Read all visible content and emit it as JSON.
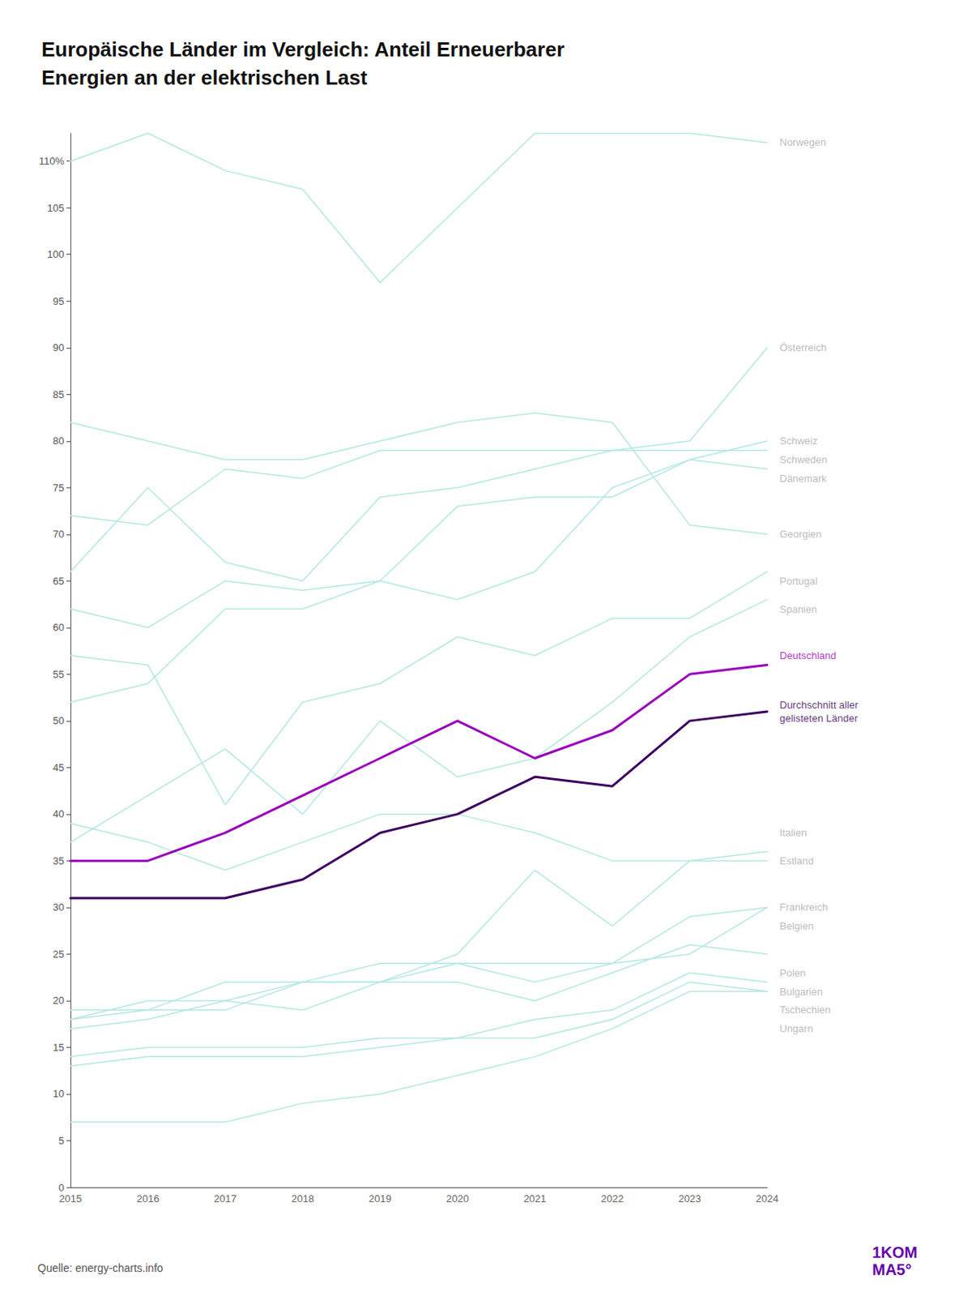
{
  "chart_data": {
    "type": "line",
    "title": "Europäische Länder im Vergleich: Anteil Erneuerbarer\nEnergien an der elektrischen Last",
    "categories": [
      "2015",
      "2016",
      "2017",
      "2018",
      "2019",
      "2020",
      "2021",
      "2022",
      "2023",
      "2024"
    ],
    "series": [
      {
        "name": "Norwegen",
        "color": "#b2e8e0",
        "values": [
          110,
          113,
          109,
          107,
          97,
          105,
          113,
          113,
          113,
          112
        ]
      },
      {
        "name": "Georgien",
        "color": "#b2e8e0",
        "values": [
          82,
          80,
          78,
          78,
          80,
          82,
          83,
          82,
          71,
          70
        ]
      },
      {
        "name": "Österreich",
        "color": "#b2e8e0",
        "values": [
          72,
          71,
          77,
          76,
          79,
          79,
          79,
          79,
          80,
          90
        ]
      },
      {
        "name": "Schweden",
        "color": "#b2e8e0",
        "values": [
          66,
          75,
          67,
          65,
          74,
          75,
          77,
          79,
          79,
          79
        ]
      },
      {
        "name": "Schweiz",
        "color": "#b2e8e0",
        "values": [
          62,
          60,
          65,
          64,
          65,
          63,
          66,
          75,
          78,
          80
        ]
      },
      {
        "name": "Dänemark",
        "color": "#b2e8e0",
        "values": [
          52,
          54,
          62,
          62,
          65,
          73,
          74,
          74,
          78,
          77
        ]
      },
      {
        "name": "Portugal",
        "color": "#b2e8e0",
        "values": [
          57,
          56,
          41,
          52,
          54,
          59,
          57,
          61,
          61,
          66
        ]
      },
      {
        "name": "Spanien",
        "color": "#b2e8e0",
        "values": [
          37,
          42,
          47,
          40,
          50,
          44,
          46,
          52,
          59,
          63
        ]
      },
      {
        "name": "Italien",
        "color": "#b2e8e0",
        "values": [
          39,
          37,
          34,
          37,
          40,
          40,
          38,
          35,
          35,
          36
        ]
      },
      {
        "name": "Estland",
        "color": "#b2e8e0",
        "values": [
          18,
          19,
          19,
          22,
          22,
          25,
          34,
          28,
          35,
          35
        ]
      },
      {
        "name": "Frankreich",
        "color": "#b2e8e0",
        "values": [
          19,
          19,
          22,
          22,
          22,
          24,
          22,
          24,
          25,
          30
        ]
      },
      {
        "name": "Belgien",
        "color": "#b2e8e0",
        "values": [
          18,
          20,
          20,
          22,
          24,
          24,
          24,
          24,
          29,
          30
        ]
      },
      {
        "name": "Polen",
        "color": "#b2e8e0",
        "values": [
          13,
          14,
          14,
          14,
          15,
          16,
          18,
          19,
          23,
          22
        ]
      },
      {
        "name": "Bulgarien",
        "color": "#b2e8e0",
        "values": [
          17,
          18,
          20,
          19,
          22,
          22,
          20,
          23,
          26,
          25
        ]
      },
      {
        "name": "Tschechien",
        "color": "#b2e8e0",
        "values": [
          14,
          15,
          15,
          15,
          16,
          16,
          16,
          18,
          22,
          21
        ]
      },
      {
        "name": "Ungarn",
        "color": "#b2e8e0",
        "values": [
          7,
          7,
          7,
          9,
          10,
          12,
          14,
          17,
          21,
          21
        ]
      },
      {
        "name": "Deutschland",
        "color": "#9900bb",
        "values": [
          35,
          35,
          38,
          42,
          46,
          50,
          46,
          49,
          55,
          56
        ]
      },
      {
        "name": "Durchschnitt aller\ngelisteten Länder",
        "color": "#3d0060",
        "values": [
          31,
          31,
          31,
          33,
          38,
          40,
          44,
          43,
          50,
          51
        ]
      }
    ],
    "ylim": [
      0,
      113
    ],
    "yticks": [
      0,
      5,
      10,
      15,
      20,
      25,
      30,
      35,
      40,
      45,
      50,
      55,
      60,
      65,
      70,
      75,
      80,
      85,
      90,
      95,
      100,
      105,
      {
        "value": 110,
        "label": "110%"
      }
    ],
    "grid": false,
    "annotations": [
      {
        "text": "Norwegen",
        "y": 112,
        "color": "#aaaaaa"
      },
      {
        "text": "Österreich",
        "y": 90,
        "color": "#aaaaaa"
      },
      {
        "text": "Schweiz",
        "y": 80,
        "color": "#aaaaaa"
      },
      {
        "text": "Schweden",
        "y": 78,
        "color": "#aaaaaa"
      },
      {
        "text": "Dänemark",
        "y": 76,
        "color": "#aaaaaa"
      },
      {
        "text": "Georgien",
        "y": 70,
        "color": "#aaaaaa"
      },
      {
        "text": "Portugal",
        "y": 65,
        "color": "#aaaaaa"
      },
      {
        "text": "Spanien",
        "y": 62,
        "color": "#aaaaaa"
      },
      {
        "text": "Italien",
        "y": 38,
        "color": "#aaaaaa"
      },
      {
        "text": "Estland",
        "y": 35,
        "color": "#aaaaaa"
      },
      {
        "text": "Frankreich",
        "y": 30,
        "color": "#aaaaaa"
      },
      {
        "text": "Belgien",
        "y": 28,
        "color": "#aaaaaa"
      },
      {
        "text": "Polen",
        "y": 23,
        "color": "#aaaaaa"
      },
      {
        "text": "Bulgarien",
        "y": 21,
        "color": "#aaaaaa"
      },
      {
        "text": "Tschechien",
        "y": 19,
        "color": "#aaaaaa"
      },
      {
        "text": "Ungarn",
        "y": 17,
        "color": "#aaaaaa"
      },
      {
        "text": "Deutschland",
        "y": 57,
        "color": "#9900bb"
      },
      {
        "text": "Durchschnitt aller\ngelisteten Länder",
        "y": 51,
        "color": "#3d0060"
      },
      {
        "text": "Quelle: energy-charts.info",
        "color": "#555555"
      },
      {
        "text": "1KOM\nMA5°",
        "color": "#6600aa"
      }
    ]
  }
}
